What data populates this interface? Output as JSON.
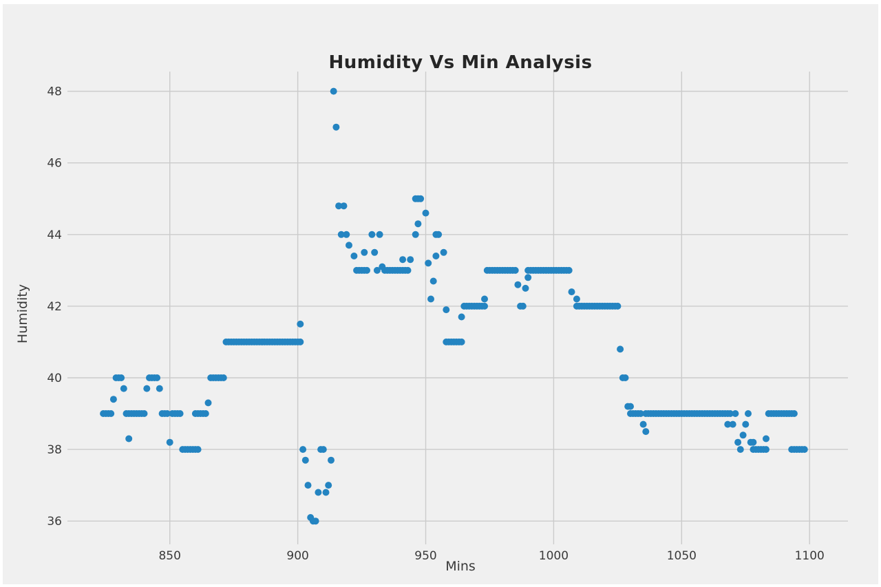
{
  "title": "Humidity Vs Min Analysis",
  "chart_data": {
    "type": "scatter",
    "title": "Humidity Vs Min Analysis",
    "xlabel": "Mins",
    "ylabel": "Humidity",
    "xlim": [
      810,
      1115
    ],
    "ylim": [
      35.35,
      48.55
    ],
    "x_ticks": [
      850,
      900,
      950,
      1000,
      1050,
      1100
    ],
    "y_ticks": [
      36,
      38,
      40,
      42,
      44,
      46,
      48
    ],
    "grid": true,
    "legend": false,
    "style": "fivethirtyeight",
    "background_color": "#f0f0f0",
    "grid_color": "#cbcbcb",
    "marker_color": "#2484c1",
    "marker_radius_px": 5,
    "points": [
      [
        824,
        39
      ],
      [
        825,
        39
      ],
      [
        826,
        39
      ],
      [
        827,
        39
      ],
      [
        828,
        39.4
      ],
      [
        829,
        40
      ],
      [
        830,
        40
      ],
      [
        831,
        40
      ],
      [
        832,
        39.7
      ],
      [
        833,
        39
      ],
      [
        834,
        39
      ],
      [
        835,
        39
      ],
      [
        836,
        39
      ],
      [
        837,
        39
      ],
      [
        838,
        39
      ],
      [
        839,
        39
      ],
      [
        840,
        39
      ],
      [
        834,
        38.3
      ],
      [
        841,
        39.7
      ],
      [
        842,
        40
      ],
      [
        843,
        40
      ],
      [
        844,
        40
      ],
      [
        845,
        40
      ],
      [
        846,
        39.7
      ],
      [
        847,
        39
      ],
      [
        848,
        39
      ],
      [
        849,
        39
      ],
      [
        850,
        38.2
      ],
      [
        851,
        39
      ],
      [
        852,
        39
      ],
      [
        853,
        39
      ],
      [
        854,
        39
      ],
      [
        855,
        38
      ],
      [
        856,
        38
      ],
      [
        857,
        38
      ],
      [
        858,
        38
      ],
      [
        859,
        38
      ],
      [
        860,
        38
      ],
      [
        861,
        38
      ],
      [
        860,
        39
      ],
      [
        861,
        39
      ],
      [
        862,
        39
      ],
      [
        863,
        39
      ],
      [
        864,
        39
      ],
      [
        865,
        39.3
      ],
      [
        866,
        40
      ],
      [
        867,
        40
      ],
      [
        868,
        40
      ],
      [
        869,
        40
      ],
      [
        870,
        40
      ],
      [
        871,
        40
      ],
      [
        872,
        41
      ],
      [
        873,
        41
      ],
      [
        874,
        41
      ],
      [
        875,
        41
      ],
      [
        876,
        41
      ],
      [
        877,
        41
      ],
      [
        878,
        41
      ],
      [
        879,
        41
      ],
      [
        880,
        41
      ],
      [
        881,
        41
      ],
      [
        882,
        41
      ],
      [
        883,
        41
      ],
      [
        884,
        41
      ],
      [
        885,
        41
      ],
      [
        886,
        41
      ],
      [
        887,
        41
      ],
      [
        888,
        41
      ],
      [
        889,
        41
      ],
      [
        890,
        41
      ],
      [
        891,
        41
      ],
      [
        892,
        41
      ],
      [
        893,
        41
      ],
      [
        894,
        41
      ],
      [
        895,
        41
      ],
      [
        896,
        41
      ],
      [
        897,
        41
      ],
      [
        898,
        41
      ],
      [
        899,
        41
      ],
      [
        900,
        41
      ],
      [
        901,
        41
      ],
      [
        901,
        41.5
      ],
      [
        902,
        38
      ],
      [
        903,
        37.7
      ],
      [
        904,
        37
      ],
      [
        905,
        36.1
      ],
      [
        906,
        36
      ],
      [
        907,
        36
      ],
      [
        908,
        36.8
      ],
      [
        909,
        38
      ],
      [
        910,
        38
      ],
      [
        911,
        36.8
      ],
      [
        912,
        37
      ],
      [
        913,
        37.7
      ],
      [
        914,
        48
      ],
      [
        915,
        47
      ],
      [
        916,
        44.8
      ],
      [
        917,
        44
      ],
      [
        918,
        44.8
      ],
      [
        919,
        44
      ],
      [
        920,
        43.7
      ],
      [
        922,
        43.4
      ],
      [
        923,
        43
      ],
      [
        924,
        43
      ],
      [
        925,
        43
      ],
      [
        926,
        43
      ],
      [
        927,
        43
      ],
      [
        926,
        43.5
      ],
      [
        929,
        44
      ],
      [
        930,
        43.5
      ],
      [
        931,
        43
      ],
      [
        932,
        44
      ],
      [
        933,
        43.1
      ],
      [
        934,
        43
      ],
      [
        935,
        43
      ],
      [
        936,
        43
      ],
      [
        937,
        43
      ],
      [
        938,
        43
      ],
      [
        939,
        43
      ],
      [
        940,
        43
      ],
      [
        941,
        43
      ],
      [
        942,
        43
      ],
      [
        943,
        43
      ],
      [
        941,
        43.3
      ],
      [
        944,
        43.3
      ],
      [
        946,
        44
      ],
      [
        947,
        44.3
      ],
      [
        946,
        45
      ],
      [
        947,
        45
      ],
      [
        948,
        45
      ],
      [
        950,
        44.6
      ],
      [
        951,
        43.2
      ],
      [
        952,
        42.2
      ],
      [
        953,
        42.7
      ],
      [
        954,
        43.4
      ],
      [
        954,
        44
      ],
      [
        955,
        44
      ],
      [
        957,
        43.5
      ],
      [
        958,
        41.9
      ],
      [
        958,
        41
      ],
      [
        959,
        41
      ],
      [
        960,
        41
      ],
      [
        961,
        41
      ],
      [
        962,
        41
      ],
      [
        963,
        41
      ],
      [
        964,
        41
      ],
      [
        964,
        41.7
      ],
      [
        965,
        42
      ],
      [
        966,
        42
      ],
      [
        967,
        42
      ],
      [
        968,
        42
      ],
      [
        969,
        42
      ],
      [
        970,
        42
      ],
      [
        971,
        42
      ],
      [
        972,
        42
      ],
      [
        973,
        42
      ],
      [
        973,
        42.2
      ],
      [
        974,
        43
      ],
      [
        975,
        43
      ],
      [
        976,
        43
      ],
      [
        977,
        43
      ],
      [
        978,
        43
      ],
      [
        979,
        43
      ],
      [
        980,
        43
      ],
      [
        981,
        43
      ],
      [
        982,
        43
      ],
      [
        983,
        43
      ],
      [
        984,
        43
      ],
      [
        985,
        43
      ],
      [
        986,
        42.6
      ],
      [
        987,
        42
      ],
      [
        988,
        42
      ],
      [
        989,
        42.5
      ],
      [
        990,
        42.8
      ],
      [
        990,
        43
      ],
      [
        991,
        43
      ],
      [
        992,
        43
      ],
      [
        993,
        43
      ],
      [
        994,
        43
      ],
      [
        995,
        43
      ],
      [
        996,
        43
      ],
      [
        997,
        43
      ],
      [
        998,
        43
      ],
      [
        999,
        43
      ],
      [
        1000,
        43
      ],
      [
        1001,
        43
      ],
      [
        1002,
        43
      ],
      [
        1003,
        43
      ],
      [
        1004,
        43
      ],
      [
        1005,
        43
      ],
      [
        1006,
        43
      ],
      [
        1007,
        42.4
      ],
      [
        1009,
        42.2
      ],
      [
        1009,
        42
      ],
      [
        1010,
        42
      ],
      [
        1011,
        42
      ],
      [
        1012,
        42
      ],
      [
        1013,
        42
      ],
      [
        1014,
        42
      ],
      [
        1015,
        42
      ],
      [
        1016,
        42
      ],
      [
        1017,
        42
      ],
      [
        1018,
        42
      ],
      [
        1019,
        42
      ],
      [
        1020,
        42
      ],
      [
        1021,
        42
      ],
      [
        1022,
        42
      ],
      [
        1023,
        42
      ],
      [
        1024,
        42
      ],
      [
        1025,
        42
      ],
      [
        1026,
        40.8
      ],
      [
        1027,
        40
      ],
      [
        1028,
        40
      ],
      [
        1029,
        39.2
      ],
      [
        1030,
        39.2
      ],
      [
        1030,
        39
      ],
      [
        1031,
        39
      ],
      [
        1032,
        39
      ],
      [
        1033,
        39
      ],
      [
        1034,
        39
      ],
      [
        1035,
        38.7
      ],
      [
        1036,
        38.5
      ],
      [
        1036,
        39
      ],
      [
        1037,
        39
      ],
      [
        1038,
        39
      ],
      [
        1039,
        39
      ],
      [
        1040,
        39
      ],
      [
        1041,
        39
      ],
      [
        1042,
        39
      ],
      [
        1043,
        39
      ],
      [
        1044,
        39
      ],
      [
        1045,
        39
      ],
      [
        1046,
        39
      ],
      [
        1047,
        39
      ],
      [
        1048,
        39
      ],
      [
        1049,
        39
      ],
      [
        1050,
        39
      ],
      [
        1051,
        39
      ],
      [
        1052,
        39
      ],
      [
        1053,
        39
      ],
      [
        1054,
        39
      ],
      [
        1055,
        39
      ],
      [
        1056,
        39
      ],
      [
        1057,
        39
      ],
      [
        1058,
        39
      ],
      [
        1059,
        39
      ],
      [
        1060,
        39
      ],
      [
        1061,
        39
      ],
      [
        1062,
        39
      ],
      [
        1063,
        39
      ],
      [
        1064,
        39
      ],
      [
        1065,
        39
      ],
      [
        1066,
        39
      ],
      [
        1067,
        39
      ],
      [
        1068,
        39
      ],
      [
        1068,
        38.7
      ],
      [
        1070,
        38.7
      ],
      [
        1069,
        39
      ],
      [
        1071,
        39
      ],
      [
        1072,
        38.2
      ],
      [
        1073,
        38
      ],
      [
        1074,
        38.4
      ],
      [
        1075,
        38.7
      ],
      [
        1076,
        39
      ],
      [
        1077,
        38.2
      ],
      [
        1078,
        38.2
      ],
      [
        1078,
        38
      ],
      [
        1079,
        38
      ],
      [
        1080,
        38
      ],
      [
        1081,
        38
      ],
      [
        1082,
        38
      ],
      [
        1083,
        38
      ],
      [
        1083,
        38.3
      ],
      [
        1084,
        39
      ],
      [
        1085,
        39
      ],
      [
        1086,
        39
      ],
      [
        1087,
        39
      ],
      [
        1088,
        39
      ],
      [
        1089,
        39
      ],
      [
        1090,
        39
      ],
      [
        1091,
        39
      ],
      [
        1092,
        39
      ],
      [
        1093,
        39
      ],
      [
        1094,
        39
      ],
      [
        1093,
        38
      ],
      [
        1094,
        38
      ],
      [
        1095,
        38
      ],
      [
        1096,
        38
      ],
      [
        1097,
        38
      ],
      [
        1098,
        38
      ]
    ]
  }
}
